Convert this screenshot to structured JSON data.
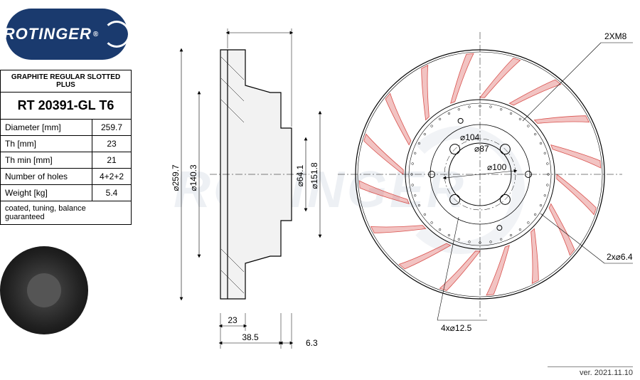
{
  "logo": {
    "text": "ROTINGER",
    "reg": "®"
  },
  "watermark": "ROTINGER",
  "version": "ver. 2021.11.10",
  "spec": {
    "header": "GRAPHITE REGULAR SLOTTED PLUS",
    "partno": "RT 20391-GL T6",
    "rows": [
      {
        "label": "Diameter [mm]",
        "value": "259.7"
      },
      {
        "label": "Th [mm]",
        "value": "23"
      },
      {
        "label": "Th min [mm]",
        "value": "21"
      },
      {
        "label": "Number of holes",
        "value": "4+2+2"
      },
      {
        "label": "Weight [kg]",
        "value": "5.4"
      }
    ],
    "note": "coated, tuning, balance guaranteed"
  },
  "side_view": {
    "dims_vertical": [
      "⌀259.7",
      "⌀140.3",
      "⌀64.1",
      "⌀151.8"
    ],
    "dims_horizontal": [
      "23",
      "38.5",
      "6.3"
    ],
    "outline_color": "#000000",
    "fill_color": "#f5f5f5"
  },
  "front_view": {
    "outer_dia": 259.7,
    "slot_count": 16,
    "slot_color": "#d9534f",
    "slot_opacity": 0.35,
    "hole_labels": {
      "top": "2XM8",
      "bottom": "4x⌀12.5",
      "right": "2x⌀6.4"
    },
    "inner_dims": [
      "⌀104",
      "⌀87",
      "⌀100"
    ],
    "line_color": "#000000"
  },
  "colors": {
    "brand": "#1a3a6e",
    "slot": "#d9534f",
    "line": "#000000",
    "bg": "#ffffff"
  }
}
